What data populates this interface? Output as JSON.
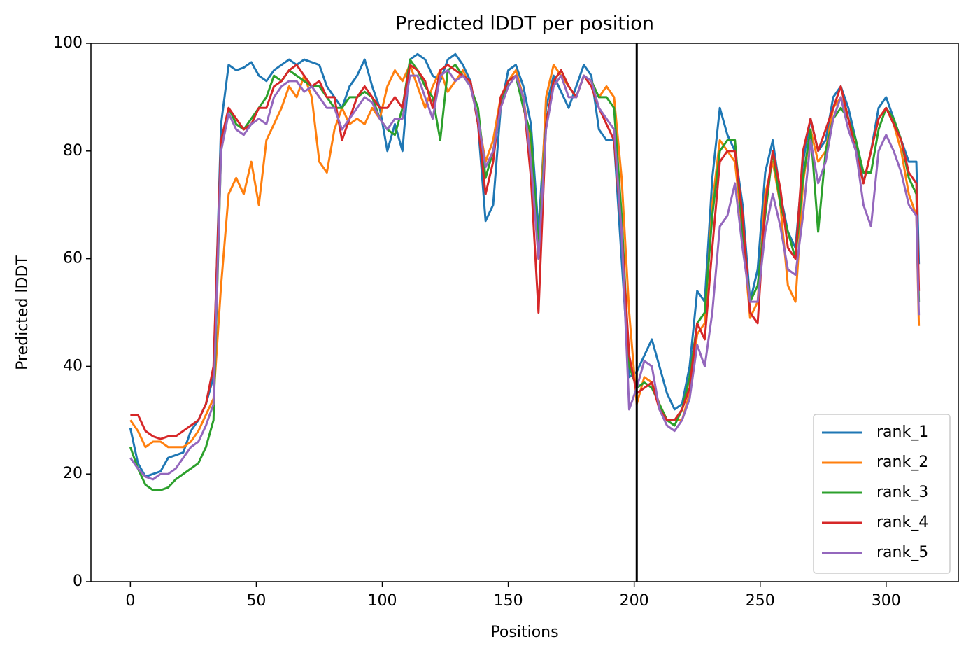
{
  "chart_data": {
    "type": "line",
    "title": "Predicted lDDT per position",
    "xlabel": "Positions",
    "ylabel": "Predicted lDDT",
    "x": [
      0,
      3,
      6,
      9,
      12,
      15,
      18,
      21,
      24,
      27,
      30,
      33,
      36,
      39,
      42,
      45,
      48,
      51,
      54,
      57,
      60,
      63,
      66,
      69,
      72,
      75,
      78,
      81,
      84,
      87,
      90,
      93,
      96,
      99,
      102,
      105,
      108,
      111,
      114,
      117,
      120,
      123,
      126,
      129,
      132,
      135,
      138,
      141,
      144,
      147,
      150,
      153,
      156,
      159,
      162,
      165,
      168,
      171,
      174,
      177,
      180,
      183,
      186,
      189,
      192,
      195,
      198,
      201,
      204,
      207,
      210,
      213,
      216,
      219,
      222,
      225,
      228,
      231,
      234,
      237,
      240,
      243,
      246,
      249,
      252,
      255,
      258,
      261,
      264,
      267,
      270,
      273,
      276,
      279,
      282,
      285,
      288,
      291,
      294,
      297,
      300,
      303,
      306,
      309,
      312,
      313
    ],
    "series": [
      {
        "name": "rank_1",
        "color": "#1f77b4",
        "values": [
          28.5,
          22,
          19.5,
          20,
          20.5,
          23,
          23.5,
          24,
          28,
          30,
          33,
          38,
          85,
          96,
          95,
          95.5,
          96.5,
          94,
          93,
          95,
          96,
          97,
          96,
          97,
          96.5,
          96,
          92,
          90,
          88,
          92,
          94,
          97,
          92,
          88,
          80,
          85,
          80,
          97,
          98,
          97,
          94,
          93,
          97,
          98,
          96,
          93,
          85,
          67,
          70,
          88,
          95,
          96,
          92,
          85,
          65,
          88,
          94,
          91,
          88,
          92,
          96,
          94,
          84,
          82,
          82,
          60,
          38,
          39,
          42,
          45,
          40,
          35,
          32,
          33,
          40,
          54,
          52,
          75,
          88,
          83,
          80,
          70,
          52,
          58,
          76,
          82,
          72,
          65,
          62,
          78,
          86,
          80,
          82,
          90,
          92,
          88,
          82,
          74,
          80,
          88,
          90,
          86,
          82,
          78,
          78,
          59
        ]
      },
      {
        "name": "rank_2",
        "color": "#ff7f0e",
        "values": [
          30,
          28,
          25,
          26,
          26,
          25,
          25,
          25,
          26,
          28,
          31,
          34,
          55,
          72,
          75,
          72,
          78,
          70,
          82,
          85,
          88,
          92,
          90,
          94,
          90,
          78,
          76,
          84,
          88,
          85,
          86,
          85,
          88,
          86,
          92,
          95,
          93,
          96,
          92,
          88,
          92,
          95,
          91,
          93,
          95,
          92,
          86,
          78,
          82,
          90,
          93,
          95,
          90,
          80,
          60,
          90,
          96,
          94,
          92,
          90,
          94,
          93,
          90,
          92,
          90,
          75,
          50,
          33,
          38,
          37,
          33,
          30,
          30,
          30,
          35,
          46,
          48,
          70,
          82,
          80,
          78,
          65,
          49,
          52,
          72,
          78,
          70,
          55,
          52,
          74,
          84,
          78,
          80,
          88,
          90,
          86,
          80,
          74,
          80,
          86,
          88,
          85,
          80,
          72,
          68,
          47.5
        ]
      },
      {
        "name": "rank_3",
        "color": "#2ca02c",
        "values": [
          25,
          21,
          18,
          17,
          17,
          17.5,
          19,
          20,
          21,
          22,
          25,
          30,
          80,
          88,
          85,
          84,
          86,
          88,
          90,
          94,
          93,
          95,
          94,
          93,
          92,
          92,
          90,
          88,
          88,
          90,
          90,
          91,
          90,
          86,
          84,
          83,
          88,
          97,
          95,
          92,
          90,
          82,
          95,
          96,
          94,
          92,
          88,
          75,
          80,
          88,
          93,
          94,
          88,
          83,
          62,
          85,
          93,
          95,
          92,
          90,
          94,
          93,
          90,
          90,
          88,
          68,
          40,
          36,
          37,
          36,
          33,
          30,
          29,
          32,
          38,
          48,
          50,
          68,
          80,
          82,
          82,
          65,
          52,
          55,
          68,
          80,
          70,
          65,
          60,
          75,
          84,
          65,
          80,
          86,
          88,
          86,
          82,
          76,
          76,
          84,
          88,
          86,
          82,
          75,
          72,
          52
        ]
      },
      {
        "name": "rank_4",
        "color": "#d62728",
        "values": [
          31,
          31,
          28,
          27,
          26.5,
          27,
          27,
          28,
          29,
          30,
          33,
          40,
          82,
          88,
          86,
          84,
          85,
          88,
          88,
          92,
          93,
          95,
          96,
          94,
          92,
          93,
          90,
          90,
          82,
          86,
          90,
          92,
          90,
          88,
          88,
          90,
          88,
          96,
          95,
          93,
          88,
          95,
          96,
          95,
          94,
          93,
          85,
          72,
          78,
          90,
          93,
          94,
          90,
          75,
          50,
          85,
          93,
          95,
          92,
          90,
          94,
          92,
          88,
          85,
          82,
          65,
          42,
          35,
          36,
          37,
          32,
          30,
          30,
          32,
          36,
          48,
          45,
          62,
          78,
          80,
          80,
          68,
          50,
          48,
          70,
          80,
          73,
          62,
          60,
          80,
          86,
          80,
          84,
          88,
          92,
          86,
          80,
          74,
          80,
          86,
          88,
          85,
          82,
          76,
          74,
          54
        ]
      },
      {
        "name": "rank_5",
        "color": "#9467bd",
        "values": [
          23,
          21,
          19.5,
          19,
          20,
          20,
          21,
          23,
          25,
          26,
          29,
          33,
          80,
          87,
          84,
          83,
          85,
          86,
          85,
          90,
          92,
          93,
          93,
          91,
          92,
          90,
          88,
          88,
          84,
          86,
          88,
          90,
          89,
          86,
          84,
          86,
          86,
          94,
          94,
          90,
          86,
          94,
          95,
          93,
          94,
          92,
          86,
          77,
          80,
          88,
          92,
          94,
          90,
          78,
          60,
          84,
          92,
          94,
          90,
          90,
          94,
          93,
          88,
          86,
          84,
          65,
          32,
          36,
          41,
          40,
          32,
          29,
          28,
          30,
          34,
          44,
          40,
          50,
          66,
          68,
          74,
          62,
          52,
          52,
          65,
          72,
          66,
          58,
          57,
          68,
          82,
          74,
          78,
          86,
          90,
          84,
          80,
          70,
          66,
          80,
          83,
          80,
          76,
          70,
          68,
          49.5
        ]
      }
    ],
    "vline": 201,
    "vline_color": "#000000",
    "xlim": [
      -15.65,
      328.65
    ],
    "xticks": [
      0,
      50,
      100,
      150,
      200,
      250,
      300
    ],
    "ylim": [
      0,
      100
    ],
    "yticks": [
      0,
      20,
      40,
      60,
      80,
      100
    ],
    "legend": "lower right"
  }
}
